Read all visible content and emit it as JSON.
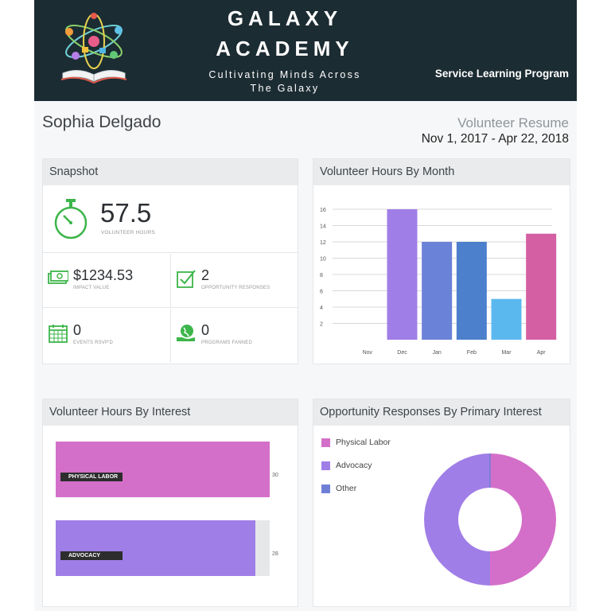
{
  "header": {
    "brand_line1": "GALAXY",
    "brand_line2": "ACADEMY",
    "tagline_line1": "Cultivating Minds Across",
    "tagline_line2": "The Galaxy",
    "program": "Service Learning Program",
    "logo_icon": "book-atom-logo-icon"
  },
  "student": {
    "name": "Sophia Delgado",
    "resume_title": "Volunteer Resume",
    "date_range": "Nov 1, 2017 - Apr 22, 2018"
  },
  "snapshot": {
    "title": "Snapshot",
    "hours": {
      "value": "57.5",
      "label": "VOLUNTEER HOURS",
      "icon": "stopwatch-icon"
    },
    "impact": {
      "value": "$1234.53",
      "label": "IMPACT VALUE",
      "icon": "money-icon"
    },
    "responses": {
      "value": "2",
      "label": "OPPORTUNITY RESPONSES",
      "icon": "checkbox-icon"
    },
    "events": {
      "value": "0",
      "label": "EVENTS RSVP'D",
      "icon": "calendar-icon"
    },
    "programs": {
      "value": "0",
      "label": "PROGRAMS FANNED",
      "icon": "globe-hand-icon"
    },
    "accent": "#3cb54a"
  },
  "hours_by_month": {
    "title": "Volunteer Hours By Month"
  },
  "hours_by_interest": {
    "title": "Volunteer Hours By Interest"
  },
  "responses_by_interest": {
    "title": "Opportunity Responses By Primary Interest",
    "legend": [
      {
        "label": "Physical Labor",
        "color": "#d46fc9"
      },
      {
        "label": "Advocacy",
        "color": "#a07ee7"
      },
      {
        "label": "Other",
        "color": "#6f7fd6"
      }
    ]
  },
  "chart_data": [
    {
      "type": "bar",
      "categories": [
        "Nov",
        "Dec",
        "Jan",
        "Feb",
        "Mar",
        "Apr"
      ],
      "values": [
        0,
        16,
        12,
        12,
        5,
        13
      ],
      "colors": [
        "#9aa2f0",
        "#a07ee7",
        "#6a82d8",
        "#4c7fcc",
        "#5bb8ef",
        "#d45fa2"
      ],
      "yticks": [
        2,
        4,
        6,
        8,
        10,
        12,
        14,
        16
      ],
      "ylim": [
        0,
        16
      ],
      "grid": true
    },
    {
      "type": "bar",
      "orientation": "horizontal",
      "categories": [
        "PHYSICAL LABOR",
        "ADVOCACY"
      ],
      "values": [
        30,
        28
      ],
      "value_labels": [
        "30",
        "28"
      ],
      "colors": [
        "#d46fc9",
        "#a07ee7"
      ],
      "xlim": [
        0,
        30
      ]
    },
    {
      "type": "pie",
      "donut": true,
      "labels": [
        "Physical Labor",
        "Advocacy",
        "Other"
      ],
      "values": [
        1,
        1,
        0
      ],
      "colors": [
        "#d46fc9",
        "#a07ee7",
        "#6f7fd6"
      ],
      "legend": "top-left"
    }
  ]
}
